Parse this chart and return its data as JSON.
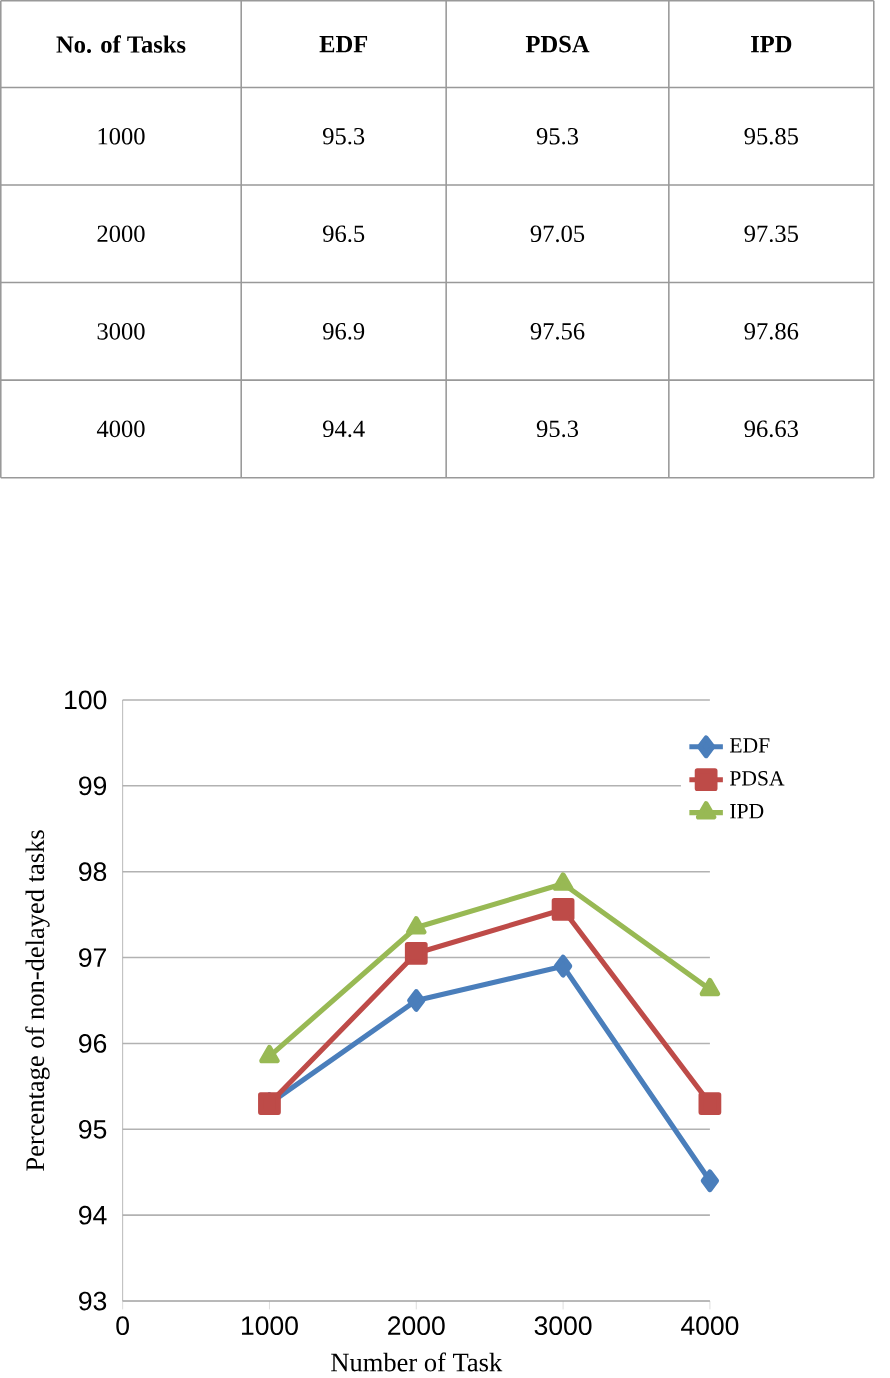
{
  "chart_data": [
    {
      "type": "heatmap",
      "ylabel": "No. of Tasks",
      "categories": [
        "EDF",
        "PDSA",
        "IPD"
      ],
      "y_categories": [
        "1000",
        "2000",
        "3000",
        "4000"
      ],
      "cells": [
        [
          95.3,
          95.3,
          95.85
        ],
        [
          96.5,
          97.05,
          97.35
        ],
        [
          96.9,
          97.56,
          97.86
        ],
        [
          94.4,
          95.3,
          96.63
        ]
      ],
      "data_labels": true
    },
    {
      "type": "line",
      "xlabel": "Number of Task",
      "ylabel": "Percentage of non-delayed tasks",
      "x": [
        1000,
        2000,
        3000,
        4000
      ],
      "series": [
        {
          "name": "EDF",
          "color": "#4a7ebb",
          "marker": "diamond",
          "values": [
            95.3,
            96.5,
            96.9,
            94.4
          ]
        },
        {
          "name": "PDSA",
          "color": "#be4b48",
          "marker": "square",
          "values": [
            95.3,
            97.05,
            97.56,
            95.3
          ]
        },
        {
          "name": "IPD",
          "color": "#98b954",
          "marker": "triangle",
          "values": [
            95.85,
            97.35,
            97.86,
            96.63
          ]
        }
      ],
      "xlim": [
        0,
        4000
      ],
      "xticks": [
        0,
        1000,
        2000,
        3000,
        4000
      ],
      "ylim": [
        93,
        100
      ],
      "yticks": [
        93,
        94,
        95,
        96,
        97,
        98,
        99,
        100
      ],
      "grid": "y",
      "legend": "top right"
    }
  ]
}
